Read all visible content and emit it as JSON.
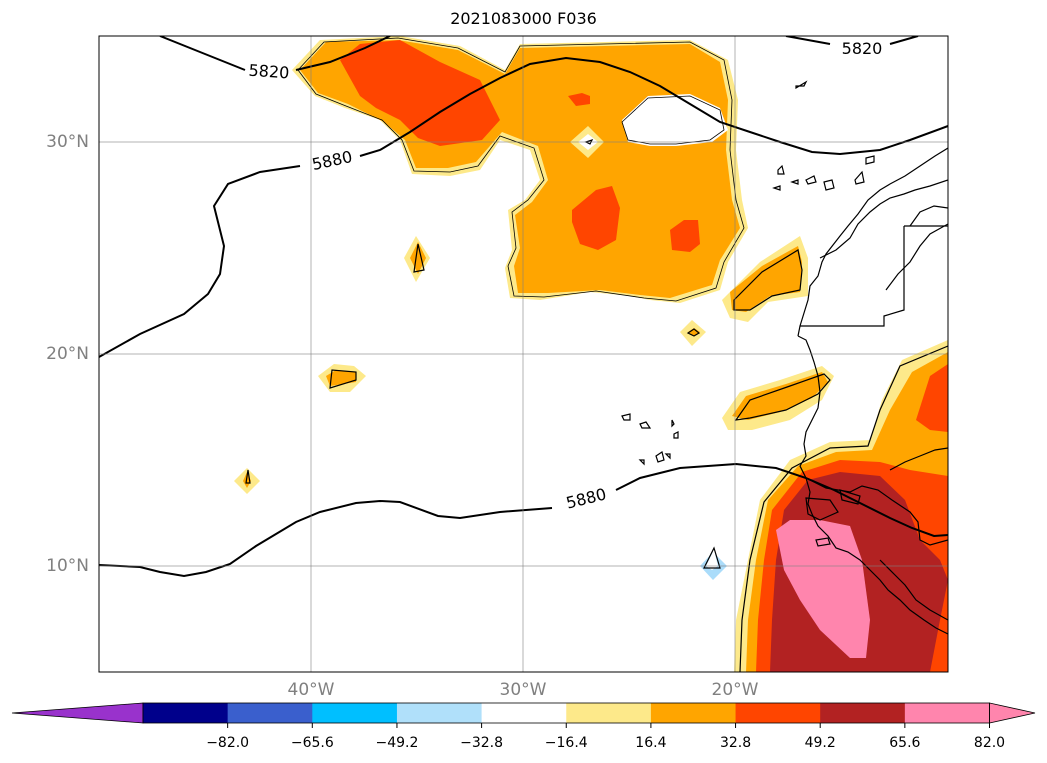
{
  "title": "2021083000 F036",
  "map": {
    "lat_labels": [
      "30°N",
      "20°N",
      "10°N"
    ],
    "lon_labels": [
      "40°W",
      "30°W",
      "20°W"
    ],
    "contour_labels": [
      "5820",
      "5820",
      "5880",
      "5880"
    ],
    "fill_colors": {
      "yellow": "#fde98a",
      "orange": "#ffa500",
      "red_orange": "#ff4500",
      "dark_red": "#b22222",
      "pink": "#ff85ad",
      "light_blue": "#aadcfa"
    }
  },
  "colorbar": {
    "colors": [
      "#9932cc",
      "#00008b",
      "#3a5fcd",
      "#00bfff",
      "#b0e0fa",
      "#ffffff",
      "#fde98a",
      "#ffa500",
      "#ff4500",
      "#b22222",
      "#ff85ad",
      "#ff85ad"
    ],
    "tick_labels": [
      "−82.0",
      "−65.6",
      "−49.2",
      "−32.8",
      "−16.4",
      "16.4",
      "32.8",
      "49.2",
      "65.6",
      "82.0"
    ]
  }
}
